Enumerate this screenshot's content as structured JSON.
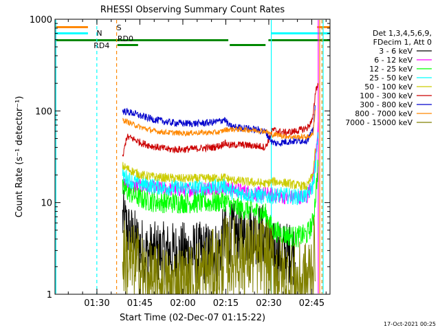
{
  "chart_data": {
    "type": "line",
    "title": "RHESSI Observing Summary Count Rates",
    "xlabel": "Start Time (02-Dec-07 01:15:22)",
    "ylabel": "Count Rate (s⁻¹ detector⁻¹)",
    "x_unit": "minutes after 01:15:22",
    "xlim": [
      0,
      96
    ],
    "ylim": [
      1,
      1000
    ],
    "yscale": "log",
    "x_ticks": [
      {
        "label": "01:30",
        "x": 14.63
      },
      {
        "label": "01:45",
        "x": 29.63
      },
      {
        "label": "02:00",
        "x": 44.63
      },
      {
        "label": "02:15",
        "x": 59.63
      },
      {
        "label": "02:30",
        "x": 74.63
      },
      {
        "label": "02:45",
        "x": 89.63
      }
    ],
    "y_ticks": [
      {
        "label": "1",
        "y": 1
      },
      {
        "label": "10",
        "y": 10
      },
      {
        "label": "100",
        "y": 100
      },
      {
        "label": "1000",
        "y": 1000
      }
    ],
    "legend": {
      "position": "right",
      "header": [
        "Det 1,3,4,5,6,9,",
        "FDecim 1, Att 0"
      ]
    },
    "series": [
      {
        "name": "3 - 6 keV",
        "color": "#000000",
        "points": [
          [
            23.6,
            6.5
          ],
          [
            26,
            4.5
          ],
          [
            29,
            3.5
          ],
          [
            32,
            2.8
          ],
          [
            40,
            2.8
          ],
          [
            50,
            2.8
          ],
          [
            57,
            2.9
          ],
          [
            59,
            4.2
          ],
          [
            62,
            4.5
          ],
          [
            66,
            4.5
          ],
          [
            69,
            4.7
          ],
          [
            72,
            4.5
          ],
          [
            73.5,
            4.3
          ],
          [
            76,
            2.8
          ],
          [
            84,
            2.8
          ]
        ]
      },
      {
        "name": "6 - 12 keV",
        "color": "#ff00ff",
        "points": [
          [
            23.6,
            16
          ],
          [
            27,
            15
          ],
          [
            30,
            15
          ],
          [
            35,
            14.5
          ],
          [
            40,
            14
          ],
          [
            45,
            13.8
          ],
          [
            50,
            14
          ],
          [
            56,
            14.5
          ],
          [
            59,
            14.8
          ],
          [
            62,
            14
          ],
          [
            66,
            13.5
          ],
          [
            70,
            12.5
          ],
          [
            73.5,
            12.5
          ],
          [
            76,
            12
          ],
          [
            80,
            11.5
          ],
          [
            84,
            11.5
          ],
          [
            88,
            11.5
          ],
          [
            90,
            18
          ],
          [
            91,
            35
          ],
          [
            92,
            80
          ]
        ]
      },
      {
        "name": "12 - 25 keV",
        "color": "#00ff00",
        "points": [
          [
            23.6,
            14
          ],
          [
            27,
            12.5
          ],
          [
            30,
            11
          ],
          [
            35,
            10.2
          ],
          [
            40,
            10
          ],
          [
            45,
            10
          ],
          [
            50,
            10
          ],
          [
            56,
            10
          ],
          [
            59,
            10.5
          ],
          [
            62,
            9
          ],
          [
            66,
            8.5
          ],
          [
            70,
            8
          ],
          [
            73.5,
            7.5
          ],
          [
            76,
            5
          ],
          [
            80,
            4.5
          ],
          [
            84,
            4.2
          ],
          [
            88,
            4.5
          ],
          [
            90,
            6
          ],
          [
            91,
            12
          ],
          [
            92,
            30
          ]
        ]
      },
      {
        "name": "25 - 50 keV",
        "color": "#00ffff",
        "points": [
          [
            23.6,
            20
          ],
          [
            27,
            17
          ],
          [
            30,
            16
          ],
          [
            35,
            15
          ],
          [
            40,
            14.5
          ],
          [
            45,
            14.5
          ],
          [
            50,
            14.5
          ],
          [
            56,
            15
          ],
          [
            59,
            15.5
          ],
          [
            62,
            13
          ],
          [
            66,
            12.5
          ],
          [
            70,
            12
          ],
          [
            73.5,
            11.5
          ],
          [
            76,
            12
          ],
          [
            80,
            12
          ],
          [
            84,
            11.5
          ],
          [
            88,
            12
          ],
          [
            90,
            15
          ],
          [
            91,
            25
          ],
          [
            92,
            60
          ]
        ]
      },
      {
        "name": "50 - 100 keV",
        "color": "#cccc00",
        "points": [
          [
            23.6,
            25
          ],
          [
            27,
            22
          ],
          [
            30,
            20
          ],
          [
            35,
            19
          ],
          [
            40,
            18.5
          ],
          [
            45,
            18.3
          ],
          [
            50,
            18.3
          ],
          [
            56,
            18.5
          ],
          [
            59,
            18.8
          ],
          [
            62,
            17.5
          ],
          [
            66,
            17
          ],
          [
            70,
            16.5
          ],
          [
            73.5,
            16
          ],
          [
            76,
            17
          ],
          [
            80,
            16.5
          ],
          [
            84,
            15.5
          ],
          [
            88,
            15
          ],
          [
            90,
            20
          ],
          [
            91,
            40
          ]
        ]
      },
      {
        "name": "100 - 300 keV",
        "color": "#cc0000",
        "points": [
          [
            23.6,
            30
          ],
          [
            25,
            52
          ],
          [
            27,
            50
          ],
          [
            30,
            45
          ],
          [
            33,
            42
          ],
          [
            36,
            40
          ],
          [
            40,
            38
          ],
          [
            45,
            38
          ],
          [
            50,
            39
          ],
          [
            55,
            40
          ],
          [
            58,
            42
          ],
          [
            59,
            45
          ],
          [
            61,
            42
          ],
          [
            64,
            43
          ],
          [
            68,
            42
          ],
          [
            72,
            41
          ],
          [
            73.5,
            40
          ],
          [
            76,
            62
          ],
          [
            78,
            60
          ],
          [
            80,
            58
          ],
          [
            84,
            60
          ],
          [
            88,
            65
          ],
          [
            90,
            80
          ],
          [
            91,
            170
          ],
          [
            92,
            200
          ]
        ]
      },
      {
        "name": "300 - 800 keV",
        "color": "#0000cc",
        "points": [
          [
            23.6,
            100
          ],
          [
            27,
            95
          ],
          [
            30,
            88
          ],
          [
            35,
            80
          ],
          [
            40,
            75
          ],
          [
            45,
            73
          ],
          [
            50,
            73
          ],
          [
            55,
            75
          ],
          [
            58,
            78
          ],
          [
            59,
            82
          ],
          [
            61,
            68
          ],
          [
            64,
            66
          ],
          [
            68,
            64
          ],
          [
            72,
            61
          ],
          [
            73.5,
            59
          ],
          [
            76,
            45
          ],
          [
            78,
            44
          ],
          [
            80,
            46
          ],
          [
            84,
            47
          ],
          [
            88,
            48
          ],
          [
            90,
            60
          ],
          [
            91,
            120
          ]
        ]
      },
      {
        "name": "800 - 7000 keV",
        "color": "#ff8800",
        "points": [
          [
            23.6,
            80
          ],
          [
            27,
            72
          ],
          [
            30,
            66
          ],
          [
            35,
            60
          ],
          [
            40,
            58
          ],
          [
            45,
            57
          ],
          [
            50,
            58
          ],
          [
            55,
            58
          ],
          [
            58,
            59
          ],
          [
            59,
            62
          ],
          [
            61,
            63
          ],
          [
            64,
            63
          ],
          [
            68,
            62
          ],
          [
            72,
            61
          ],
          [
            73.5,
            60
          ],
          [
            76,
            55
          ],
          [
            78,
            55
          ],
          [
            80,
            53
          ],
          [
            84,
            52
          ],
          [
            88,
            52
          ],
          [
            90,
            55
          ],
          [
            91,
            110
          ]
        ]
      },
      {
        "name": "7000 - 15000 keV",
        "color": "#808000",
        "points": [
          [
            23.6,
            2.6
          ],
          [
            26,
            2.2
          ],
          [
            29,
            2.0
          ],
          [
            32,
            1.4
          ],
          [
            35,
            1.3
          ],
          [
            38,
            1.25
          ],
          [
            40,
            1.15
          ],
          [
            43,
            1.3
          ],
          [
            46,
            1.2
          ],
          [
            50,
            1.5
          ],
          [
            54,
            1.8
          ],
          [
            57,
            1.9
          ],
          [
            59,
            2.6
          ],
          [
            62,
            2.6
          ],
          [
            66,
            2.6
          ],
          [
            70,
            2.6
          ],
          [
            73.5,
            2.6
          ],
          [
            76,
            2.0
          ],
          [
            80,
            1.5
          ],
          [
            84,
            1.3
          ],
          [
            88,
            1.4
          ],
          [
            90,
            2.2
          ],
          [
            91,
            3
          ]
        ]
      }
    ],
    "flag_bars": [
      {
        "label": "S",
        "color": "#ff8800"
      },
      {
        "label": "N",
        "color": "#00ffff"
      },
      {
        "label": "RD0",
        "color": "#008800"
      },
      {
        "label": "RD4",
        "color": "#008800"
      }
    ],
    "timestamp": "17-Oct-2021 00:25"
  }
}
